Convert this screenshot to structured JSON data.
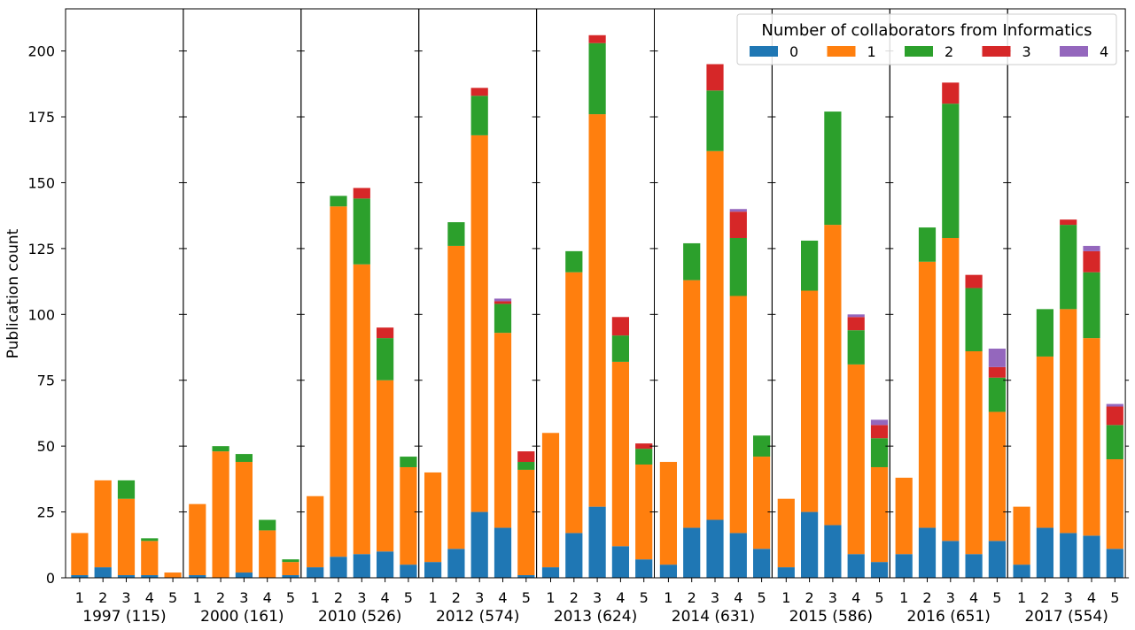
{
  "chart_data": {
    "type": "bar",
    "stacked": true,
    "ylabel": "Publication count",
    "ylim": [
      0,
      216
    ],
    "yticks": [
      0,
      25,
      50,
      75,
      100,
      125,
      150,
      175,
      200
    ],
    "legend": {
      "title": "Number of collaborators from Informatics",
      "placement": "top-right",
      "ncol": 5
    },
    "colors": [
      "#1f77b4",
      "#ff7f0e",
      "#2ca02c",
      "#d62728",
      "#9467bd"
    ],
    "series_names": [
      "0",
      "1",
      "2",
      "3",
      "4"
    ],
    "bar_labels": [
      "1",
      "2",
      "3",
      "4",
      "5"
    ],
    "groups": [
      {
        "label": "1997 (115)",
        "bars": [
          [
            1,
            16,
            0,
            0,
            0
          ],
          [
            4,
            33,
            0,
            0,
            0
          ],
          [
            1,
            29,
            7,
            0,
            0
          ],
          [
            1,
            13,
            1,
            0,
            0
          ],
          [
            0,
            2,
            0,
            0,
            0
          ]
        ]
      },
      {
        "label": "2000 (161)",
        "bars": [
          [
            1,
            27,
            0,
            0,
            0
          ],
          [
            0,
            48,
            2,
            0,
            0
          ],
          [
            2,
            42,
            3,
            0,
            0
          ],
          [
            0,
            18,
            4,
            0,
            0
          ],
          [
            1,
            5,
            1,
            0,
            0
          ]
        ]
      },
      {
        "label": "2010 (526)",
        "bars": [
          [
            4,
            27,
            0,
            0,
            0
          ],
          [
            8,
            133,
            4,
            0,
            0
          ],
          [
            9,
            110,
            25,
            4,
            0
          ],
          [
            10,
            65,
            16,
            4,
            0
          ],
          [
            5,
            37,
            4,
            0,
            0
          ]
        ]
      },
      {
        "label": "2012 (574)",
        "bars": [
          [
            6,
            34,
            0,
            0,
            0
          ],
          [
            11,
            115,
            9,
            0,
            0
          ],
          [
            25,
            143,
            15,
            3,
            0
          ],
          [
            19,
            74,
            11,
            1,
            1
          ],
          [
            1,
            40,
            3,
            4,
            0
          ]
        ]
      },
      {
        "label": "2013 (624)",
        "bars": [
          [
            4,
            51,
            0,
            0,
            0
          ],
          [
            17,
            99,
            8,
            0,
            0
          ],
          [
            27,
            149,
            27,
            3,
            0
          ],
          [
            12,
            70,
            10,
            7,
            0
          ],
          [
            7,
            36,
            6,
            2,
            0
          ]
        ]
      },
      {
        "label": "2014 (631)",
        "bars": [
          [
            5,
            39,
            0,
            0,
            0
          ],
          [
            19,
            94,
            14,
            0,
            0
          ],
          [
            22,
            140,
            23,
            10,
            0
          ],
          [
            17,
            90,
            22,
            10,
            1
          ],
          [
            11,
            35,
            8,
            0,
            0
          ]
        ]
      },
      {
        "label": "2015 (586)",
        "bars": [
          [
            4,
            26,
            0,
            0,
            0
          ],
          [
            25,
            84,
            19,
            0,
            0
          ],
          [
            20,
            114,
            43,
            0,
            0
          ],
          [
            9,
            72,
            13,
            5,
            1
          ],
          [
            6,
            36,
            11,
            5,
            2
          ]
        ]
      },
      {
        "label": "2016 (651)",
        "bars": [
          [
            9,
            29,
            0,
            0,
            0
          ],
          [
            19,
            101,
            13,
            0,
            0
          ],
          [
            14,
            115,
            51,
            8,
            0
          ],
          [
            9,
            77,
            24,
            5,
            0
          ],
          [
            14,
            49,
            13,
            4,
            7
          ]
        ]
      },
      {
        "label": "2017 (554)",
        "bars": [
          [
            5,
            22,
            0,
            0,
            0
          ],
          [
            19,
            65,
            18,
            0,
            0
          ],
          [
            17,
            85,
            32,
            2,
            0
          ],
          [
            16,
            75,
            25,
            8,
            2
          ],
          [
            11,
            34,
            13,
            7,
            1
          ]
        ]
      }
    ]
  }
}
